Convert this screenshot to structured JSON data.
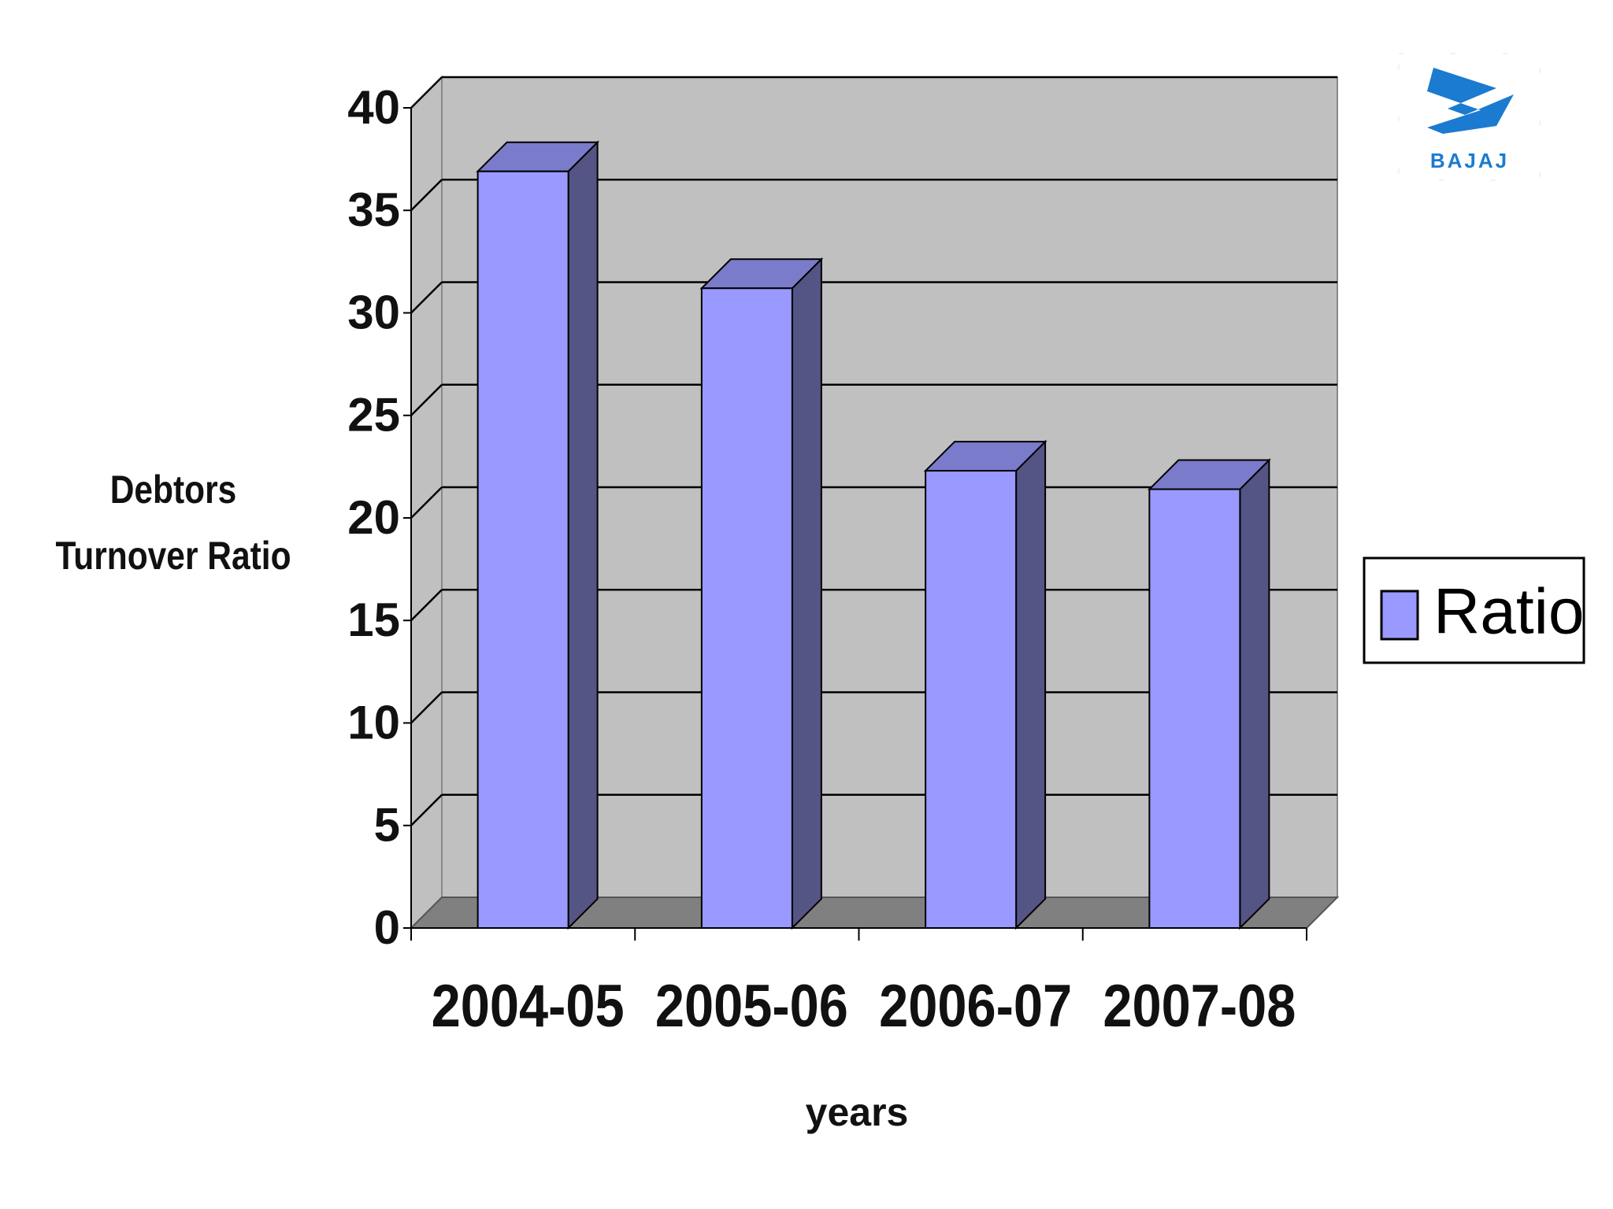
{
  "brand": "BAJAJ",
  "chart_data": {
    "type": "bar",
    "x_label": "years",
    "y_label": "Debtors Turnover Ratio",
    "categories": [
      "2004-05",
      "2005-06",
      "2006-07",
      "2007-08"
    ],
    "series": [
      {
        "name": "Ratio",
        "color": "#9999ff",
        "values": [
          36.9,
          31.2,
          22.3,
          21.4
        ]
      }
    ],
    "ylim": [
      0,
      40
    ],
    "yticks": [
      0,
      5,
      10,
      15,
      20,
      25,
      30,
      35,
      40
    ],
    "grid": true,
    "legend": "right"
  }
}
